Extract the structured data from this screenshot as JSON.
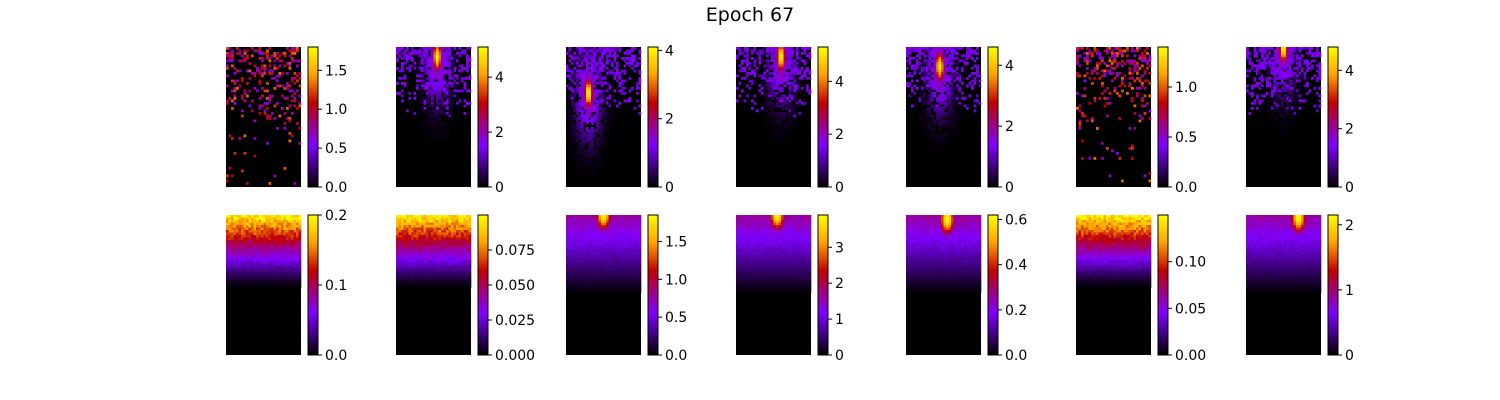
{
  "figure": {
    "title": "Epoch 67"
  },
  "colormap": {
    "name": "gnuplot",
    "stops": [
      "#000000",
      "#7f00ff",
      "#c00000",
      "#ffa000",
      "#ffff00"
    ]
  },
  "chart_data": [
    {
      "type": "heatmap",
      "row": 1,
      "col": 1,
      "pattern": "sparse-scatter",
      "peak": [
        0.55,
        0.08
      ],
      "colorbar": {
        "range": [
          0,
          1.8
        ],
        "ticks": [
          "0.0",
          "0.5",
          "1.0",
          "1.5"
        ],
        "tick_values": [
          0,
          0.5,
          1.0,
          1.5
        ]
      }
    },
    {
      "type": "heatmap",
      "row": 1,
      "col": 2,
      "pattern": "spot",
      "peak": [
        0.55,
        0.07
      ],
      "colorbar": {
        "range": [
          0,
          5.1
        ],
        "ticks": [
          "0",
          "2",
          "4"
        ],
        "tick_values": [
          0,
          2,
          4
        ]
      }
    },
    {
      "type": "heatmap",
      "row": 1,
      "col": 3,
      "pattern": "spot",
      "peak": [
        0.3,
        0.33
      ],
      "colorbar": {
        "range": [
          0,
          4.1
        ],
        "ticks": [
          "0",
          "2",
          "4"
        ],
        "tick_values": [
          0,
          2,
          4
        ]
      }
    },
    {
      "type": "heatmap",
      "row": 1,
      "col": 4,
      "pattern": "spot",
      "peak": [
        0.6,
        0.07
      ],
      "colorbar": {
        "range": [
          0,
          5.3
        ],
        "ticks": [
          "0",
          "2",
          "4"
        ],
        "tick_values": [
          0,
          2,
          4
        ]
      }
    },
    {
      "type": "heatmap",
      "row": 1,
      "col": 5,
      "pattern": "spot",
      "peak": [
        0.45,
        0.14
      ],
      "colorbar": {
        "range": [
          0,
          4.6
        ],
        "ticks": [
          "0",
          "2",
          "4"
        ],
        "tick_values": [
          0,
          2,
          4
        ]
      }
    },
    {
      "type": "heatmap",
      "row": 1,
      "col": 6,
      "pattern": "sparse-scatter",
      "peak": [
        0.45,
        0.03
      ],
      "colorbar": {
        "range": [
          0,
          1.4
        ],
        "ticks": [
          "0.0",
          "0.5",
          "1.0"
        ],
        "tick_values": [
          0,
          0.5,
          1.0
        ]
      }
    },
    {
      "type": "heatmap",
      "row": 1,
      "col": 7,
      "pattern": "spot",
      "peak": [
        0.5,
        0.01
      ],
      "colorbar": {
        "range": [
          0,
          4.8
        ],
        "ticks": [
          "0",
          "2",
          "4"
        ],
        "tick_values": [
          0,
          2,
          4
        ]
      }
    },
    {
      "type": "heatmap",
      "row": 2,
      "col": 1,
      "pattern": "top-band",
      "peak": [
        0.5,
        0.0
      ],
      "colorbar": {
        "range": [
          0,
          0.2
        ],
        "ticks": [
          "0.0",
          "0.1",
          "0.2"
        ],
        "tick_values": [
          0,
          0.1,
          0.2
        ]
      }
    },
    {
      "type": "heatmap",
      "row": 2,
      "col": 2,
      "pattern": "top-band",
      "peak": [
        0.5,
        0.0
      ],
      "colorbar": {
        "range": [
          0,
          0.1
        ],
        "ticks": [
          "0.000",
          "0.025",
          "0.050",
          "0.075"
        ],
        "tick_values": [
          0,
          0.025,
          0.05,
          0.075
        ]
      }
    },
    {
      "type": "heatmap",
      "row": 2,
      "col": 3,
      "pattern": "top-spot",
      "peak": [
        0.5,
        0.0
      ],
      "colorbar": {
        "range": [
          0,
          1.85
        ],
        "ticks": [
          "0.0",
          "0.5",
          "1.0",
          "1.5"
        ],
        "tick_values": [
          0,
          0.5,
          1.0,
          1.5
        ]
      }
    },
    {
      "type": "heatmap",
      "row": 2,
      "col": 4,
      "pattern": "top-spot",
      "peak": [
        0.55,
        0.0
      ],
      "colorbar": {
        "range": [
          0,
          3.9
        ],
        "ticks": [
          "0",
          "1",
          "2",
          "3"
        ],
        "tick_values": [
          0,
          1,
          2,
          3
        ]
      }
    },
    {
      "type": "heatmap",
      "row": 2,
      "col": 5,
      "pattern": "top-spot",
      "peak": [
        0.55,
        0.03
      ],
      "colorbar": {
        "range": [
          0,
          0.62
        ],
        "ticks": [
          "0.0",
          "0.2",
          "0.4",
          "0.6"
        ],
        "tick_values": [
          0,
          0.2,
          0.4,
          0.6
        ]
      }
    },
    {
      "type": "heatmap",
      "row": 2,
      "col": 6,
      "pattern": "top-band",
      "peak": [
        0.5,
        0.0
      ],
      "colorbar": {
        "range": [
          0,
          0.15
        ],
        "ticks": [
          "0.00",
          "0.05",
          "0.10"
        ],
        "tick_values": [
          0,
          0.05,
          0.1
        ]
      }
    },
    {
      "type": "heatmap",
      "row": 2,
      "col": 7,
      "pattern": "top-spot",
      "peak": [
        0.7,
        0.02
      ],
      "colorbar": {
        "range": [
          0,
          2.15
        ],
        "ticks": [
          "0",
          "1",
          "2"
        ],
        "tick_values": [
          0,
          1,
          2
        ]
      }
    }
  ]
}
